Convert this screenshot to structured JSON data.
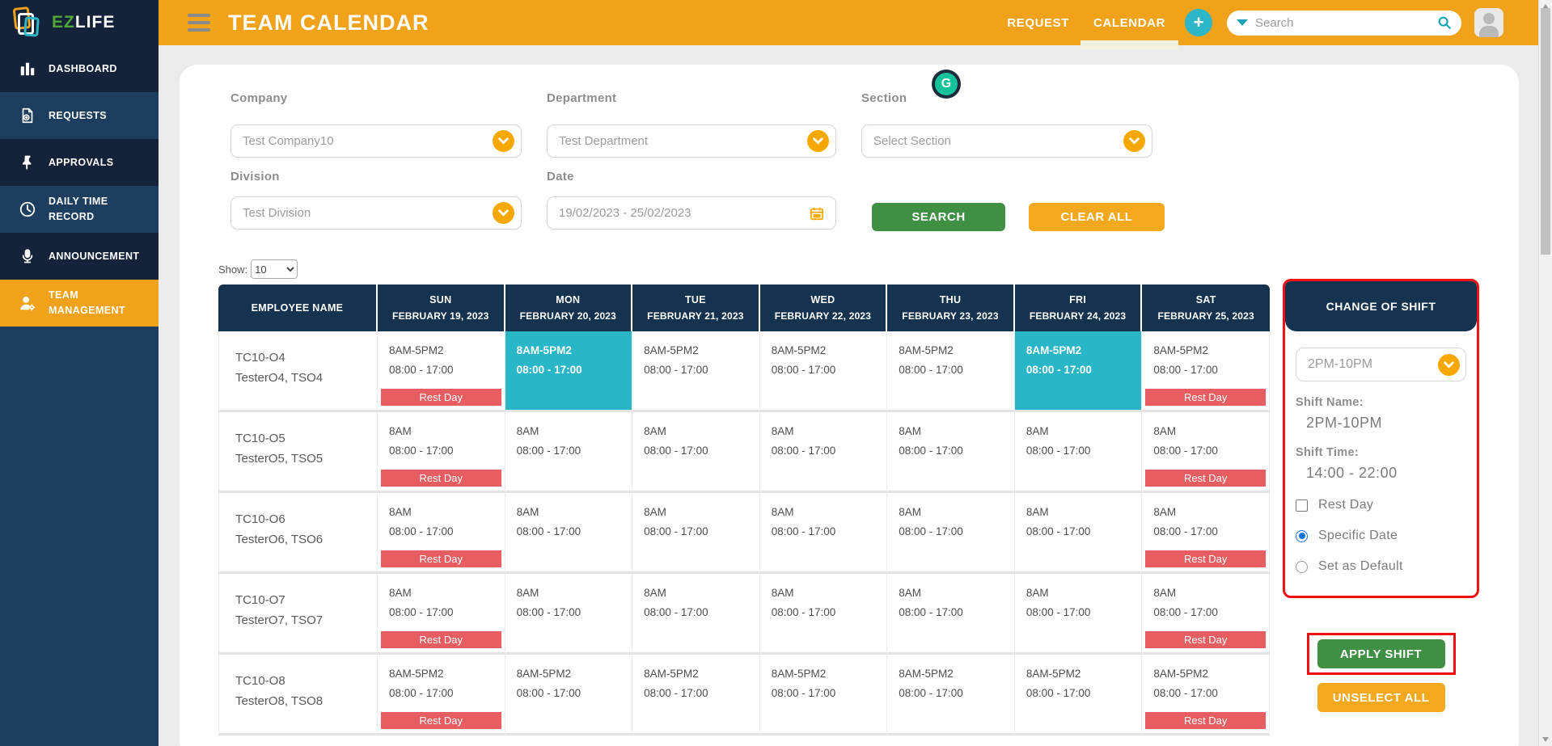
{
  "brand": {
    "ez": "EZ",
    "life": "LIFE"
  },
  "topbar": {
    "title": "TEAM CALENDAR",
    "nav": [
      {
        "label": "REQUEST",
        "active": false
      },
      {
        "label": "CALENDAR",
        "active": true
      }
    ],
    "search": {
      "placeholder": "Search"
    }
  },
  "sidebar": {
    "items": [
      {
        "label": "DASHBOARD",
        "icon": "bar-chart-icon",
        "active": false
      },
      {
        "label": "REQUESTS",
        "icon": "document-plus-icon",
        "active": false
      },
      {
        "label": "APPROVALS",
        "icon": "pin-icon",
        "active": false
      },
      {
        "label": "DAILY TIME RECORD",
        "icon": "clock-icon",
        "active": false
      },
      {
        "label": "ANNOUNCEMENT",
        "icon": "microphone-icon",
        "active": false
      },
      {
        "label": "TEAM MANAGEMENT",
        "icon": "person-gear-icon",
        "active": true
      }
    ]
  },
  "filters": {
    "company": {
      "label": "Company",
      "value": "Test Company10"
    },
    "department": {
      "label": "Department",
      "value": "Test Department"
    },
    "section": {
      "label": "Section",
      "value": "Select Section"
    },
    "division": {
      "label": "Division",
      "value": "Test Division"
    },
    "date": {
      "label": "Date",
      "value": "19/02/2023 - 25/02/2023"
    },
    "search_button": "SEARCH",
    "clear_button": "CLEAR ALL"
  },
  "table": {
    "show_label": "Show:",
    "show_value": "10",
    "employee_header": "EMPLOYEE NAME",
    "day_headers": [
      {
        "day": "SUN",
        "date": "FEBRUARY 19, 2023"
      },
      {
        "day": "MON",
        "date": "FEBRUARY 20, 2023"
      },
      {
        "day": "TUE",
        "date": "FEBRUARY 21, 2023"
      },
      {
        "day": "WED",
        "date": "FEBRUARY 22, 2023"
      },
      {
        "day": "THU",
        "date": "FEBRUARY 23, 2023"
      },
      {
        "day": "FRI",
        "date": "FEBRUARY 24, 2023"
      },
      {
        "day": "SAT",
        "date": "FEBRUARY 25, 2023"
      }
    ],
    "rest_day_label": "Rest Day",
    "rows": [
      {
        "code": "TC10-O4",
        "name": "TesterO4, TSO4",
        "cells": [
          {
            "shift": "8AM-5PM2",
            "time": "08:00 - 17:00",
            "rest_day": true,
            "selected": false
          },
          {
            "shift": "8AM-5PM2",
            "time": "08:00 - 17:00",
            "rest_day": false,
            "selected": true
          },
          {
            "shift": "8AM-5PM2",
            "time": "08:00 - 17:00",
            "rest_day": false,
            "selected": false
          },
          {
            "shift": "8AM-5PM2",
            "time": "08:00 - 17:00",
            "rest_day": false,
            "selected": false
          },
          {
            "shift": "8AM-5PM2",
            "time": "08:00 - 17:00",
            "rest_day": false,
            "selected": false
          },
          {
            "shift": "8AM-5PM2",
            "time": "08:00 - 17:00",
            "rest_day": false,
            "selected": true
          },
          {
            "shift": "8AM-5PM2",
            "time": "08:00 - 17:00",
            "rest_day": true,
            "selected": false
          }
        ]
      },
      {
        "code": "TC10-O5",
        "name": "TesterO5, TSO5",
        "cells": [
          {
            "shift": "8AM",
            "time": "08:00 - 17:00",
            "rest_day": true,
            "selected": false
          },
          {
            "shift": "8AM",
            "time": "08:00 - 17:00",
            "rest_day": false,
            "selected": false
          },
          {
            "shift": "8AM",
            "time": "08:00 - 17:00",
            "rest_day": false,
            "selected": false
          },
          {
            "shift": "8AM",
            "time": "08:00 - 17:00",
            "rest_day": false,
            "selected": false
          },
          {
            "shift": "8AM",
            "time": "08:00 - 17:00",
            "rest_day": false,
            "selected": false
          },
          {
            "shift": "8AM",
            "time": "08:00 - 17:00",
            "rest_day": false,
            "selected": false
          },
          {
            "shift": "8AM",
            "time": "08:00 - 17:00",
            "rest_day": true,
            "selected": false
          }
        ]
      },
      {
        "code": "TC10-O6",
        "name": "TesterO6, TSO6",
        "cells": [
          {
            "shift": "8AM",
            "time": "08:00 - 17:00",
            "rest_day": true,
            "selected": false
          },
          {
            "shift": "8AM",
            "time": "08:00 - 17:00",
            "rest_day": false,
            "selected": false
          },
          {
            "shift": "8AM",
            "time": "08:00 - 17:00",
            "rest_day": false,
            "selected": false
          },
          {
            "shift": "8AM",
            "time": "08:00 - 17:00",
            "rest_day": false,
            "selected": false
          },
          {
            "shift": "8AM",
            "time": "08:00 - 17:00",
            "rest_day": false,
            "selected": false
          },
          {
            "shift": "8AM",
            "time": "08:00 - 17:00",
            "rest_day": false,
            "selected": false
          },
          {
            "shift": "8AM",
            "time": "08:00 - 17:00",
            "rest_day": true,
            "selected": false
          }
        ]
      },
      {
        "code": "TC10-O7",
        "name": "TesterO7, TSO7",
        "cells": [
          {
            "shift": "8AM",
            "time": "08:00 - 17:00",
            "rest_day": true,
            "selected": false
          },
          {
            "shift": "8AM",
            "time": "08:00 - 17:00",
            "rest_day": false,
            "selected": false
          },
          {
            "shift": "8AM",
            "time": "08:00 - 17:00",
            "rest_day": false,
            "selected": false
          },
          {
            "shift": "8AM",
            "time": "08:00 - 17:00",
            "rest_day": false,
            "selected": false
          },
          {
            "shift": "8AM",
            "time": "08:00 - 17:00",
            "rest_day": false,
            "selected": false
          },
          {
            "shift": "8AM",
            "time": "08:00 - 17:00",
            "rest_day": false,
            "selected": false
          },
          {
            "shift": "8AM",
            "time": "08:00 - 17:00",
            "rest_day": true,
            "selected": false
          }
        ]
      },
      {
        "code": "TC10-O8",
        "name": "TesterO8, TSO8",
        "cells": [
          {
            "shift": "8AM-5PM2",
            "time": "08:00 - 17:00",
            "rest_day": true,
            "selected": false
          },
          {
            "shift": "8AM-5PM2",
            "time": "08:00 - 17:00",
            "rest_day": false,
            "selected": false
          },
          {
            "shift": "8AM-5PM2",
            "time": "08:00 - 17:00",
            "rest_day": false,
            "selected": false
          },
          {
            "shift": "8AM-5PM2",
            "time": "08:00 - 17:00",
            "rest_day": false,
            "selected": false
          },
          {
            "shift": "8AM-5PM2",
            "time": "08:00 - 17:00",
            "rest_day": false,
            "selected": false
          },
          {
            "shift": "8AM-5PM2",
            "time": "08:00 - 17:00",
            "rest_day": false,
            "selected": false
          },
          {
            "shift": "8AM-5PM2",
            "time": "08:00 - 17:00",
            "rest_day": true,
            "selected": false
          }
        ]
      }
    ]
  },
  "shift_panel": {
    "title": "CHANGE OF SHIFT",
    "shift_select_value": "2PM-10PM",
    "shift_name_label": "Shift Name:",
    "shift_name_value": "2PM-10PM",
    "shift_time_label": "Shift Time:",
    "shift_time_value": "14:00 - 22:00",
    "options": [
      {
        "label": "Rest Day",
        "type": "checkbox",
        "checked": false
      },
      {
        "label": "Specific Date",
        "type": "radio",
        "checked": true
      },
      {
        "label": "Set as Default",
        "type": "radio",
        "checked": false
      }
    ],
    "apply_button": "APPLY SHIFT",
    "unselect_button": "UNSELECT ALL"
  },
  "colors": {
    "brand_orange": "#f1a21b",
    "navy_dark": "#142339",
    "navy_light": "#1d3e5f",
    "teal_accent": "#29b6c6",
    "green_button": "#3f8f44",
    "rest_day_red": "#e85d62",
    "highlight_red": "#ee1111",
    "radio_blue": "#1673e6"
  }
}
